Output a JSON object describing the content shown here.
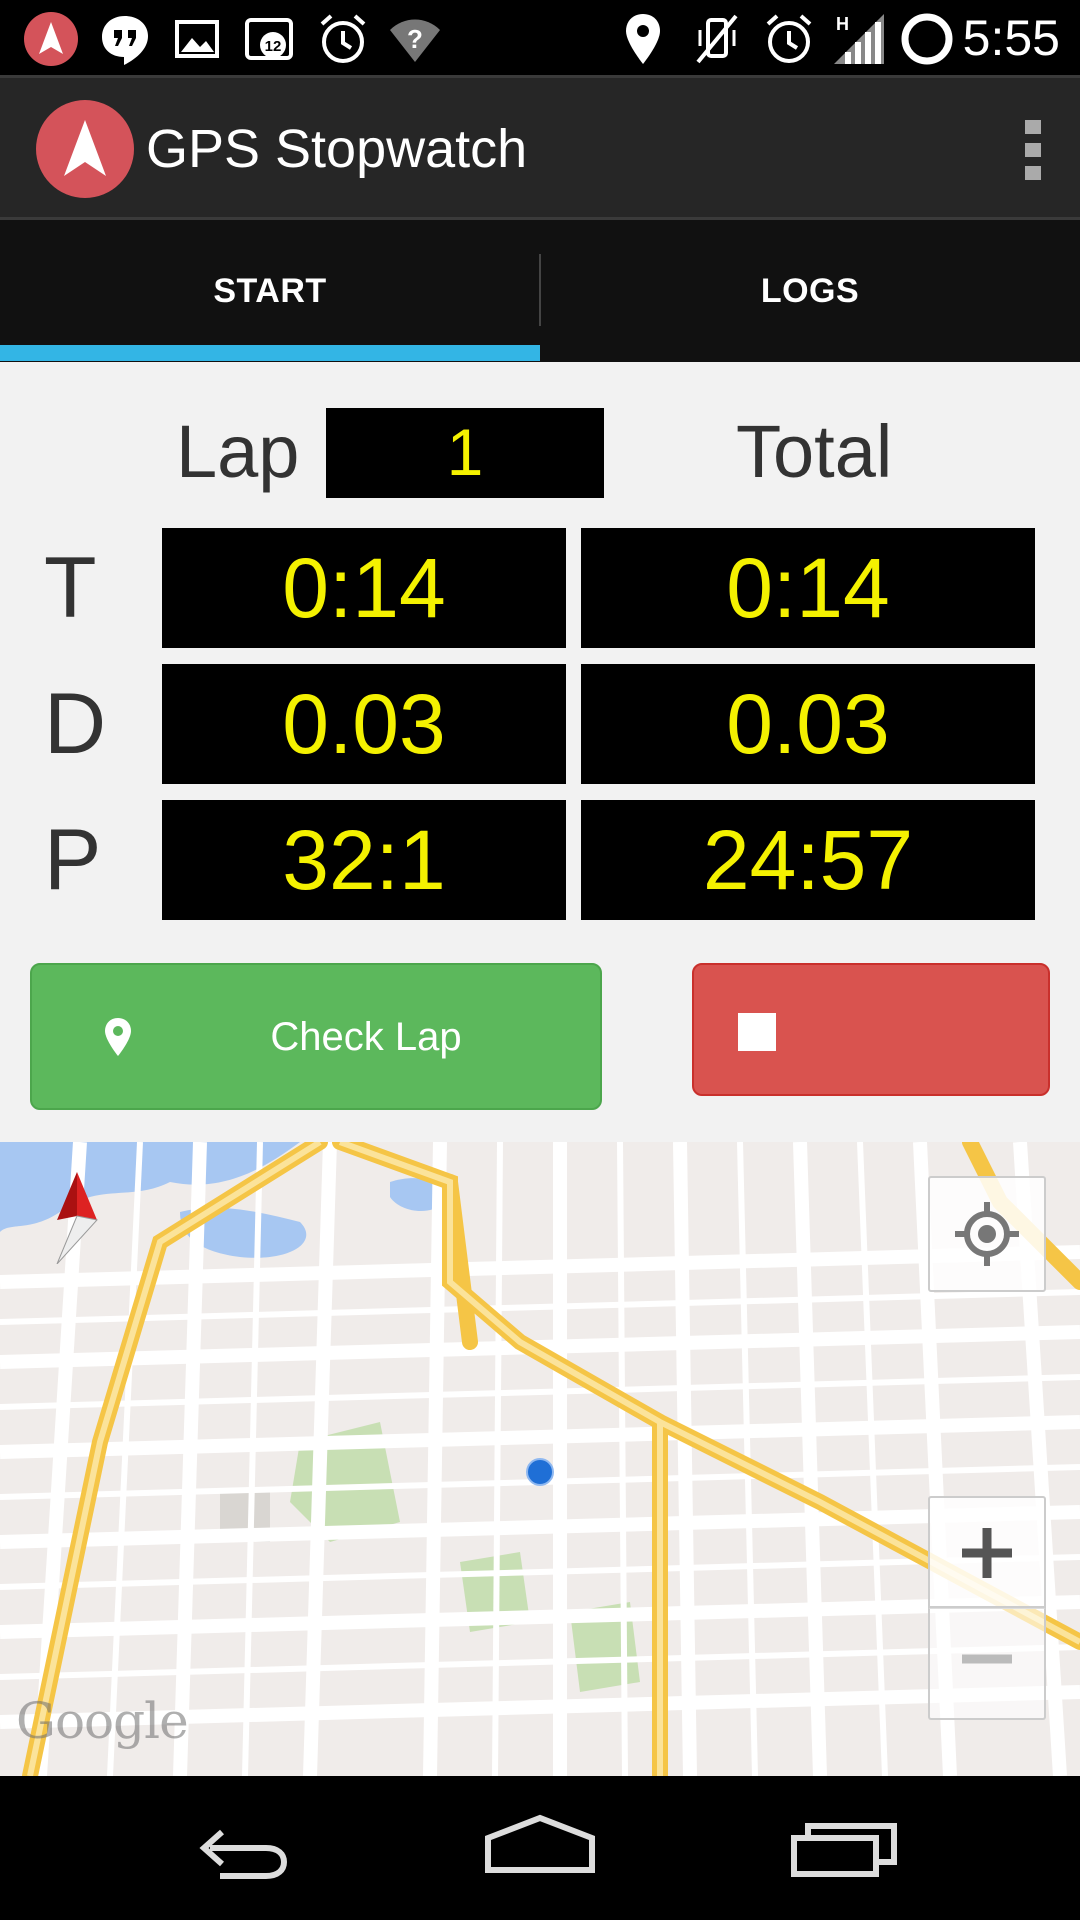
{
  "status_bar": {
    "clock": "5:55",
    "notification_badge": "12",
    "network_type": "H",
    "left_icons": [
      "app-notification-icon",
      "hangouts-icon",
      "image-icon",
      "calendar-icon",
      "alarm-icon",
      "wifi-unknown-icon"
    ],
    "right_icons": [
      "location-icon",
      "vibrate-off-icon",
      "alarm-icon",
      "signal-icon",
      "battery-icon"
    ]
  },
  "action_bar": {
    "title": "GPS Stopwatch",
    "overflow_icon": "overflow-menu-icon"
  },
  "tabs": [
    {
      "label": "START",
      "selected": true
    },
    {
      "label": "LOGS",
      "selected": false
    }
  ],
  "stopwatch": {
    "lap_label": "Lap",
    "lap_number": "1",
    "total_label": "Total",
    "rows": [
      {
        "label": "T",
        "lap": "0:14",
        "total": "0:14"
      },
      {
        "label": "D",
        "lap": "0.03",
        "total": "0.03"
      },
      {
        "label": "P",
        "lap": "32:1",
        "total": "24:57"
      }
    ]
  },
  "buttons": {
    "check_lap": "Check Lap",
    "check_lap_icon": "map-pin-icon",
    "stop_icon": "stop-icon"
  },
  "map": {
    "attribution": "Google",
    "zoom_in": "+",
    "zoom_out": "−"
  },
  "colors": {
    "accent": "#33b5e5",
    "display_text": "#f4f100",
    "check_lap_green": "#5cb85c",
    "stop_red": "#d9534f",
    "app_logo": "#d4535a"
  }
}
